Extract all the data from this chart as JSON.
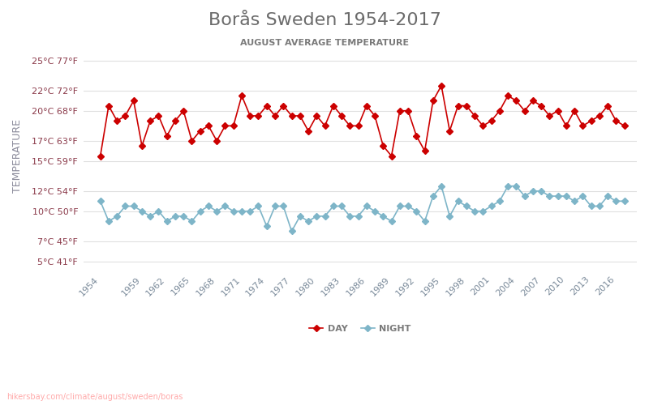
{
  "title": "Borås Sweden 1954-2017",
  "subtitle": "AUGUST AVERAGE TEMPERATURE",
  "ylabel": "TEMPERATURE",
  "url": "hikersbay.com/climate/august/sweden/boras",
  "years": [
    1954,
    1955,
    1956,
    1957,
    1958,
    1959,
    1960,
    1961,
    1962,
    1963,
    1964,
    1965,
    1966,
    1967,
    1968,
    1969,
    1970,
    1971,
    1972,
    1973,
    1974,
    1975,
    1976,
    1977,
    1978,
    1979,
    1980,
    1981,
    1982,
    1983,
    1984,
    1985,
    1986,
    1987,
    1988,
    1989,
    1990,
    1991,
    1992,
    1993,
    1994,
    1995,
    1996,
    1997,
    1998,
    1999,
    2000,
    2001,
    2002,
    2003,
    2004,
    2005,
    2006,
    2007,
    2008,
    2009,
    2010,
    2011,
    2012,
    2013,
    2014,
    2015,
    2016,
    2017
  ],
  "day": [
    15.5,
    20.5,
    19.0,
    19.5,
    21.0,
    16.5,
    19.0,
    19.5,
    17.5,
    19.0,
    20.0,
    17.0,
    18.0,
    18.5,
    17.0,
    18.5,
    18.5,
    21.5,
    19.5,
    19.5,
    20.5,
    19.5,
    20.5,
    19.5,
    19.5,
    18.0,
    19.5,
    18.5,
    20.5,
    19.5,
    18.5,
    18.5,
    20.5,
    19.5,
    16.5,
    15.5,
    20.0,
    20.0,
    17.5,
    16.0,
    21.0,
    22.5,
    18.0,
    20.5,
    20.5,
    19.5,
    18.5,
    19.0,
    20.0,
    21.5,
    21.0,
    20.0,
    21.0,
    20.5,
    19.5,
    20.0,
    18.5,
    20.0,
    18.5,
    19.0,
    19.5,
    20.5,
    19.0,
    18.5
  ],
  "night": [
    11.0,
    9.0,
    9.5,
    10.5,
    10.5,
    10.0,
    9.5,
    10.0,
    9.0,
    9.5,
    9.5,
    9.0,
    10.0,
    10.5,
    10.0,
    10.5,
    10.0,
    10.0,
    10.0,
    10.5,
    8.5,
    10.5,
    10.5,
    8.0,
    9.5,
    9.0,
    9.5,
    9.5,
    10.5,
    10.5,
    9.5,
    9.5,
    10.5,
    10.0,
    9.5,
    9.0,
    10.5,
    10.5,
    10.0,
    9.0,
    11.5,
    12.5,
    9.5,
    11.0,
    10.5,
    10.0,
    10.0,
    10.5,
    11.0,
    12.5,
    12.5,
    11.5,
    12.0,
    12.0,
    11.5,
    11.5,
    11.5,
    11.0,
    11.5,
    10.5,
    10.5,
    11.5,
    11.0,
    11.0
  ],
  "yticks_c": [
    5,
    7,
    10,
    12,
    15,
    17,
    20,
    22,
    25
  ],
  "yticks_f": [
    41,
    45,
    50,
    54,
    59,
    63,
    68,
    72,
    77
  ],
  "xtick_years": [
    1954,
    1959,
    1962,
    1965,
    1968,
    1971,
    1974,
    1977,
    1980,
    1983,
    1986,
    1989,
    1992,
    1995,
    1998,
    2001,
    2004,
    2007,
    2010,
    2013,
    2016
  ],
  "ylim": [
    4,
    27
  ],
  "day_color": "#cc0000",
  "night_color": "#7eb5c8",
  "title_color": "#6b6b6b",
  "subtitle_color": "#7a7a7a",
  "ylabel_color": "#8a8a9a",
  "ytick_color": "#8b3a4a",
  "xtick_color": "#7a8a9a",
  "grid_color": "#e0e0e0",
  "background_color": "#ffffff",
  "url_color": "#ffaaaa"
}
